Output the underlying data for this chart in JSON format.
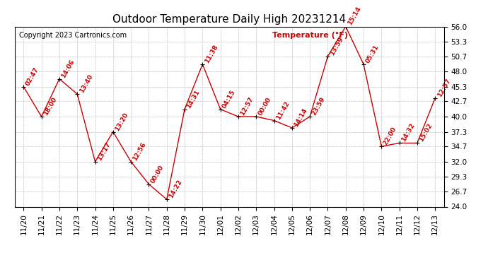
{
  "title": "Outdoor Temperature Daily High 20231214",
  "copyright": "Copyright 2023 Cartronics.com",
  "legend_label": "Temperature (°F)",
  "x_labels": [
    "11/20",
    "11/21",
    "11/22",
    "11/23",
    "11/24",
    "11/25",
    "11/26",
    "11/27",
    "11/28",
    "11/29",
    "11/30",
    "12/01",
    "12/02",
    "12/03",
    "12/04",
    "12/05",
    "12/06",
    "12/07",
    "12/08",
    "12/09",
    "12/10",
    "12/11",
    "12/12",
    "12/13"
  ],
  "y_values": [
    45.3,
    40.0,
    46.7,
    44.0,
    32.0,
    37.3,
    32.0,
    28.0,
    25.3,
    41.3,
    49.3,
    41.3,
    40.0,
    40.0,
    39.3,
    38.0,
    40.0,
    50.7,
    56.0,
    49.3,
    34.7,
    35.3,
    35.3,
    43.3
  ],
  "point_labels": [
    "02:47",
    "18:00",
    "14:06",
    "13:40",
    "13:17",
    "13:20",
    "12:56",
    "00:00",
    "14:22",
    "14:31",
    "11:38",
    "04:15",
    "12:57",
    "00:00",
    "11:42",
    "14:14",
    "23:59",
    "13:59",
    "15:14",
    "05:31",
    "22:00",
    "14:32",
    "15:02",
    "12:57"
  ],
  "line_color": "#cc0000",
  "marker_color": "#000000",
  "label_color": "#cc0000",
  "background_color": "#ffffff",
  "grid_color": "#bbbbbb",
  "ylim_min": 24.0,
  "ylim_max": 56.0,
  "yticks": [
    24.0,
    26.7,
    29.3,
    32.0,
    34.7,
    37.3,
    40.0,
    42.7,
    45.3,
    48.0,
    50.7,
    53.3,
    56.0
  ],
  "title_fontsize": 11,
  "label_fontsize": 6.5,
  "tick_fontsize": 7.5,
  "copyright_fontsize": 7,
  "legend_fontsize": 8
}
